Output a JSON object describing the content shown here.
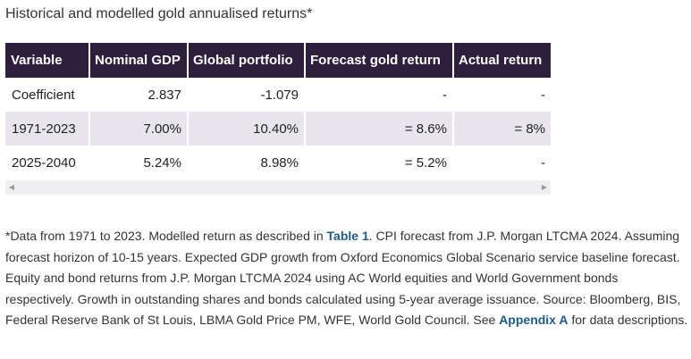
{
  "title": "Historical and modelled gold annualised returns*",
  "table": {
    "headers": [
      "Variable",
      "Nominal GDP",
      "Global portfolio",
      "Forecast gold return",
      "Actual return"
    ],
    "rows": [
      [
        "Coefficient",
        "2.837",
        "-1.079",
        "-",
        "-"
      ],
      [
        "1971-2023",
        "7.00%",
        "10.40%",
        "= 8.6%",
        "= 8%"
      ],
      [
        "2025-2040",
        "5.24%",
        "8.98%",
        "= 5.2%",
        "-"
      ]
    ]
  },
  "scrollbar": {
    "left_arrow": "◀",
    "right_arrow": "▶"
  },
  "footnote": {
    "part1": "*Data from 1971 to 2023. Modelled return as described in ",
    "link1": "Table 1",
    "part2": ". CPI forecast from J.P. Morgan LTCMA 2024. Assuming forecast horizon of 10-15 years. Expected GDP growth from Oxford Economics Global Scenario service baseline forecast. Equity and bond returns from J.P. Morgan LTCMA 2024 using AC World equities and World Government bonds respectively. Growth in outstanding shares and bonds calculated using 5-year average issuance. Source: Bloomberg, BIS, Federal Reserve Bank of St Louis, LBMA Gold Price PM, WFE, World Gold Council. See ",
    "link2": "Appendix A",
    "part3": " for data descriptions."
  }
}
